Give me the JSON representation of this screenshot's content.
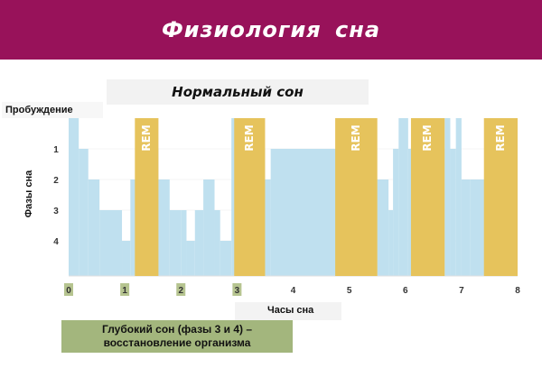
{
  "header": {
    "title": "Физиология  сна"
  },
  "chart_data": {
    "type": "area",
    "title": "Нормальный сон",
    "xlabel": "Часы сна",
    "ylabel": "Фазы сна",
    "wake_label": "Пробуждение",
    "x_ticks": [
      "0",
      "1",
      "2",
      "3",
      "4",
      "5",
      "6",
      "7",
      "8"
    ],
    "y_ticks": [
      "1",
      "2",
      "3",
      "4"
    ],
    "xlim": [
      0,
      8
    ],
    "ylim": [
      0,
      4.5
    ],
    "y_inverted": true,
    "series": [
      {
        "kind": "stage_step",
        "x": [
          0,
          0.18,
          0.35,
          0.55,
          0.95,
          1.1,
          1.5,
          1.6,
          1.8,
          2.0,
          2.1,
          2.25,
          2.4,
          2.6,
          2.7,
          2.9,
          3.05,
          3.5,
          3.6,
          5.1,
          5.5,
          5.7,
          5.78,
          5.88,
          6.05,
          6.15,
          6.6,
          6.7,
          6.8,
          6.9,
          7.0,
          7.15,
          8.0
        ],
        "y": [
          0,
          1,
          2,
          3,
          4,
          2,
          1,
          2,
          3,
          3,
          4,
          3,
          2,
          3,
          4,
          0,
          1,
          2,
          1,
          2,
          2,
          3,
          1,
          0,
          1,
          1,
          1,
          0,
          1,
          0,
          2,
          2,
          2
        ]
      }
    ],
    "rem_label": "REM",
    "rem_periods": [
      [
        1.18,
        1.6
      ],
      [
        2.95,
        3.5
      ],
      [
        4.75,
        5.5
      ],
      [
        6.1,
        6.7
      ],
      [
        7.4,
        8.0
      ]
    ],
    "colors": {
      "stage_fill": "#bfe0ef",
      "rem": "#e6c35c",
      "banner": "#98125a"
    },
    "grid": true
  },
  "legend": {
    "line1": "Глубокий сон (фазы 3 и 4) –",
    "line2": "восстановление организма"
  }
}
